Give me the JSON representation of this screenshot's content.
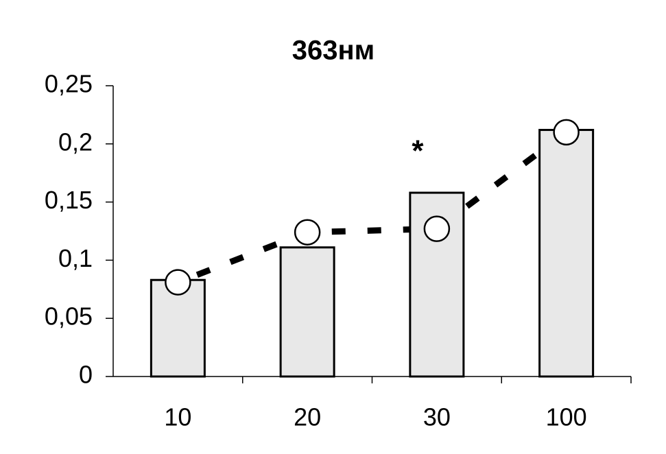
{
  "chart_data": {
    "type": "bar",
    "title": "363нм",
    "categories": [
      "10",
      "20",
      "30",
      "100"
    ],
    "series": [
      {
        "type": "bar",
        "color": "#e8e8e8",
        "values": [
          0.083,
          0.111,
          0.158,
          0.212
        ]
      },
      {
        "type": "line",
        "color": "#000000",
        "values": [
          0.081,
          0.124,
          0.127,
          0.21
        ]
      }
    ],
    "annotations": [
      "*"
    ],
    "ylim": [
      0,
      0.25
    ],
    "yticks": [
      0,
      {
        "value": 0.05,
        "label": "0,05"
      },
      {
        "value": 0.1,
        "label": "0,1"
      },
      {
        "value": 0.15,
        "label": "0,15"
      },
      {
        "value": 0.2,
        "label": "0,2"
      },
      {
        "value": 0.25,
        "label": "0,25"
      }
    ],
    "grid": false
  }
}
